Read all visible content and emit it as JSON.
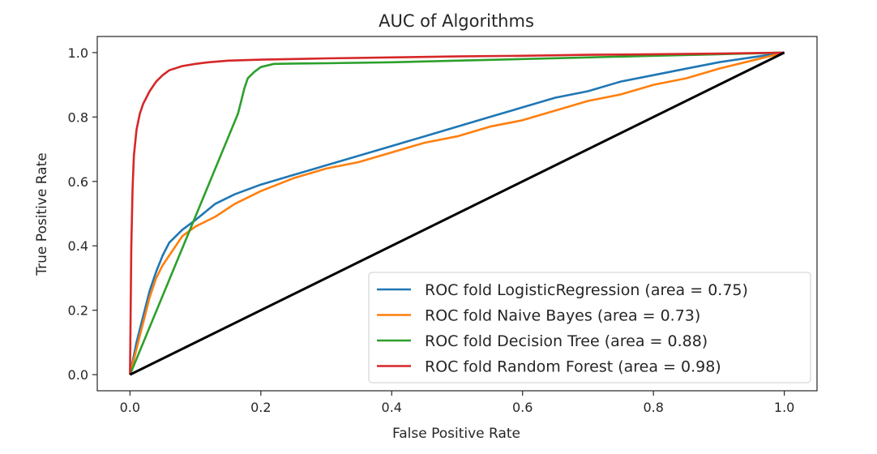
{
  "chart_data": {
    "type": "line",
    "title": "AUC of Algorithms",
    "xlabel": "False Positive Rate",
    "ylabel": "True Positive Rate",
    "xlim": [
      -0.05,
      1.05
    ],
    "ylim": [
      -0.05,
      1.05
    ],
    "x_ticks": [
      "0.0",
      "0.2",
      "0.4",
      "0.6",
      "0.8",
      "1.0"
    ],
    "y_ticks": [
      "0.0",
      "0.2",
      "0.4",
      "0.6",
      "0.8",
      "1.0"
    ],
    "grid": false,
    "legend_position": "lower right",
    "series": [
      {
        "name": "ROC fold LogisticRegression (area = 0.75)",
        "color": "#1f77b4",
        "x": [
          0,
          0.01,
          0.02,
          0.03,
          0.04,
          0.05,
          0.06,
          0.08,
          0.1,
          0.13,
          0.16,
          0.2,
          0.25,
          0.3,
          0.35,
          0.4,
          0.45,
          0.5,
          0.55,
          0.6,
          0.65,
          0.7,
          0.75,
          0.8,
          0.85,
          0.9,
          0.95,
          1.0
        ],
        "y": [
          0,
          0.1,
          0.18,
          0.26,
          0.32,
          0.37,
          0.41,
          0.45,
          0.48,
          0.53,
          0.56,
          0.59,
          0.62,
          0.65,
          0.68,
          0.71,
          0.74,
          0.77,
          0.8,
          0.83,
          0.86,
          0.88,
          0.91,
          0.93,
          0.95,
          0.97,
          0.985,
          1.0
        ]
      },
      {
        "name": "ROC fold Naive Bayes (area = 0.73)",
        "color": "#ff7f0e",
        "x": [
          0,
          0.01,
          0.02,
          0.03,
          0.04,
          0.05,
          0.06,
          0.08,
          0.1,
          0.13,
          0.16,
          0.2,
          0.25,
          0.3,
          0.35,
          0.4,
          0.45,
          0.5,
          0.55,
          0.6,
          0.65,
          0.7,
          0.75,
          0.8,
          0.85,
          0.9,
          0.95,
          1.0
        ],
        "y": [
          0,
          0.08,
          0.16,
          0.24,
          0.3,
          0.34,
          0.37,
          0.43,
          0.46,
          0.49,
          0.53,
          0.57,
          0.61,
          0.64,
          0.66,
          0.69,
          0.72,
          0.74,
          0.77,
          0.79,
          0.82,
          0.85,
          0.87,
          0.9,
          0.92,
          0.95,
          0.975,
          1.0
        ]
      },
      {
        "name": "ROC fold Decision Tree (area = 0.88)",
        "color": "#2ca02c",
        "x": [
          0,
          0.165,
          0.17,
          0.175,
          0.18,
          0.19,
          0.2,
          0.22,
          0.25,
          0.3,
          0.4,
          0.5,
          0.6,
          0.7,
          0.8,
          0.9,
          1.0
        ],
        "y": [
          0,
          0.81,
          0.85,
          0.89,
          0.92,
          0.94,
          0.955,
          0.965,
          0.966,
          0.967,
          0.97,
          0.975,
          0.98,
          0.985,
          0.99,
          0.995,
          1.0
        ]
      },
      {
        "name": "ROC fold Random Forest (area = 0.98)",
        "color": "#d62728",
        "x": [
          0,
          0.002,
          0.004,
          0.006,
          0.01,
          0.015,
          0.02,
          0.03,
          0.04,
          0.05,
          0.06,
          0.08,
          0.1,
          0.12,
          0.15,
          0.2,
          0.3,
          0.4,
          0.5,
          0.6,
          0.7,
          0.8,
          0.9,
          1.0
        ],
        "y": [
          0,
          0.4,
          0.58,
          0.68,
          0.76,
          0.81,
          0.84,
          0.88,
          0.91,
          0.93,
          0.945,
          0.958,
          0.965,
          0.97,
          0.975,
          0.978,
          0.982,
          0.985,
          0.988,
          0.99,
          0.993,
          0.995,
          0.997,
          1.0
        ]
      },
      {
        "name": "",
        "color": "#000000",
        "x": [
          0,
          1
        ],
        "y": [
          0,
          1
        ]
      }
    ]
  }
}
